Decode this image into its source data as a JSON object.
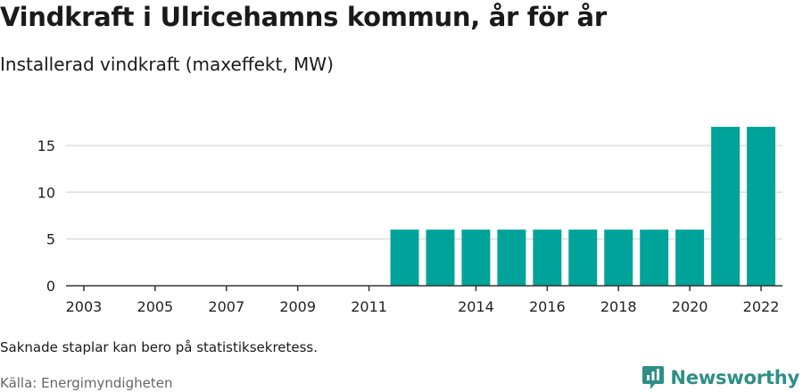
{
  "header": {
    "title": "Vindkraft i Ulricehamns kommun, år för år",
    "subtitle": "Installerad vindkraft (maxeffekt, MW)"
  },
  "footer": {
    "note": "Saknade staplar kan bero på statistiksekretess.",
    "source": "Källa: Energimyndigheten",
    "brand": "Newsworthy"
  },
  "colors": {
    "bar": "#00a39a",
    "grid": "#dddddd",
    "axis": "#333333",
    "brand": "#2e8f87"
  },
  "chart_data": {
    "type": "bar",
    "categories": [
      "2003",
      "2004",
      "2005",
      "2006",
      "2007",
      "2008",
      "2009",
      "2010",
      "2011",
      "2012",
      "2013",
      "2014",
      "2015",
      "2016",
      "2017",
      "2018",
      "2019",
      "2020",
      "2021",
      "2022"
    ],
    "x_tick_labels": [
      "2003",
      "2005",
      "2007",
      "2009",
      "2011",
      "2014",
      "2016",
      "2018",
      "2020",
      "2022"
    ],
    "values": [
      null,
      null,
      null,
      null,
      null,
      null,
      null,
      null,
      null,
      6,
      6,
      6,
      6,
      6,
      6,
      6,
      6,
      6,
      17,
      17
    ],
    "y_ticks": [
      0,
      5,
      10,
      15
    ],
    "ylim": [
      0,
      18
    ],
    "grid": true,
    "legend": false
  }
}
